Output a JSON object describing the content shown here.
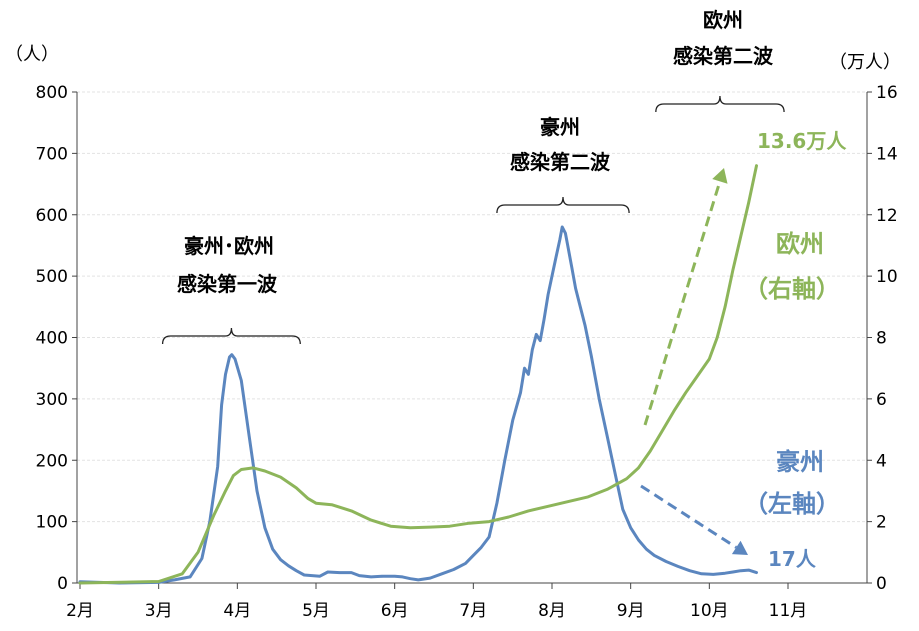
{
  "chart_data": {
    "type": "line",
    "y_left_unit": "（人）",
    "y_right_unit": "（万人）",
    "y_left_ticks": [
      "800",
      "700",
      "600",
      "500",
      "400",
      "300",
      "200",
      "100",
      "0"
    ],
    "y_right_ticks": [
      "16",
      "14",
      "12",
      "10",
      "8",
      "6",
      "4",
      "2",
      "0"
    ],
    "ylim_left": [
      0,
      800
    ],
    "ylim_right": [
      0,
      16
    ],
    "x_ticks": [
      "2月",
      "3月",
      "4月",
      "5月",
      "6月",
      "7月",
      "8月",
      "9月",
      "10月",
      "11月"
    ],
    "grid": true,
    "colors": {
      "australia": "#5b86bf",
      "europe": "#8db55a"
    },
    "series": [
      {
        "name": "豪州",
        "axis": "left",
        "label_line1": "豪州",
        "label_line2": "（左軸）",
        "end_label": "17人",
        "points": [
          [
            2.0,
            2
          ],
          [
            2.5,
            0
          ],
          [
            3.0,
            1
          ],
          [
            3.2,
            5
          ],
          [
            3.4,
            10
          ],
          [
            3.55,
            40
          ],
          [
            3.65,
            100
          ],
          [
            3.75,
            190
          ],
          [
            3.8,
            290
          ],
          [
            3.85,
            340
          ],
          [
            3.9,
            368
          ],
          [
            3.93,
            372
          ],
          [
            3.97,
            365
          ],
          [
            4.05,
            330
          ],
          [
            4.15,
            240
          ],
          [
            4.25,
            150
          ],
          [
            4.35,
            90
          ],
          [
            4.45,
            55
          ],
          [
            4.55,
            38
          ],
          [
            4.65,
            28
          ],
          [
            4.75,
            20
          ],
          [
            4.85,
            13
          ],
          [
            4.95,
            12
          ],
          [
            5.05,
            11
          ],
          [
            5.15,
            18
          ],
          [
            5.3,
            17
          ],
          [
            5.45,
            17
          ],
          [
            5.55,
            12
          ],
          [
            5.7,
            10
          ],
          [
            5.85,
            11
          ],
          [
            6.0,
            11
          ],
          [
            6.1,
            10
          ],
          [
            6.2,
            7
          ],
          [
            6.3,
            5
          ],
          [
            6.45,
            8
          ],
          [
            6.6,
            15
          ],
          [
            6.75,
            22
          ],
          [
            6.9,
            32
          ],
          [
            7.0,
            45
          ],
          [
            7.1,
            58
          ],
          [
            7.2,
            75
          ],
          [
            7.3,
            130
          ],
          [
            7.4,
            200
          ],
          [
            7.5,
            265
          ],
          [
            7.6,
            310
          ],
          [
            7.65,
            350
          ],
          [
            7.7,
            340
          ],
          [
            7.75,
            380
          ],
          [
            7.8,
            405
          ],
          [
            7.85,
            395
          ],
          [
            7.9,
            430
          ],
          [
            7.95,
            470
          ],
          [
            8.0,
            500
          ],
          [
            8.05,
            530
          ],
          [
            8.1,
            560
          ],
          [
            8.13,
            580
          ],
          [
            8.17,
            570
          ],
          [
            8.2,
            550
          ],
          [
            8.25,
            515
          ],
          [
            8.3,
            480
          ],
          [
            8.35,
            455
          ],
          [
            8.42,
            420
          ],
          [
            8.5,
            370
          ],
          [
            8.6,
            300
          ],
          [
            8.7,
            240
          ],
          [
            8.8,
            180
          ],
          [
            8.9,
            120
          ],
          [
            9.0,
            90
          ],
          [
            9.1,
            70
          ],
          [
            9.2,
            55
          ],
          [
            9.3,
            45
          ],
          [
            9.45,
            35
          ],
          [
            9.6,
            27
          ],
          [
            9.75,
            20
          ],
          [
            9.9,
            15
          ],
          [
            10.05,
            14
          ],
          [
            10.2,
            16
          ],
          [
            10.3,
            18
          ],
          [
            10.4,
            20
          ],
          [
            10.5,
            21
          ],
          [
            10.6,
            17
          ]
        ]
      },
      {
        "name": "欧州",
        "axis": "right",
        "label_line1": "欧州",
        "label_line2": "（右軸）",
        "end_label": "13.6万人",
        "points": [
          [
            2.0,
            0
          ],
          [
            3.0,
            0.05
          ],
          [
            3.3,
            0.3
          ],
          [
            3.5,
            1.0
          ],
          [
            3.7,
            2.2
          ],
          [
            3.85,
            3.0
          ],
          [
            3.95,
            3.5
          ],
          [
            4.05,
            3.7
          ],
          [
            4.2,
            3.75
          ],
          [
            4.35,
            3.65
          ],
          [
            4.55,
            3.45
          ],
          [
            4.75,
            3.1
          ],
          [
            4.9,
            2.75
          ],
          [
            5.0,
            2.6
          ],
          [
            5.2,
            2.55
          ],
          [
            5.45,
            2.35
          ],
          [
            5.7,
            2.05
          ],
          [
            5.95,
            1.85
          ],
          [
            6.2,
            1.8
          ],
          [
            6.45,
            1.82
          ],
          [
            6.7,
            1.85
          ],
          [
            6.95,
            1.95
          ],
          [
            7.2,
            2.0
          ],
          [
            7.45,
            2.15
          ],
          [
            7.7,
            2.35
          ],
          [
            7.95,
            2.5
          ],
          [
            8.2,
            2.65
          ],
          [
            8.45,
            2.8
          ],
          [
            8.7,
            3.05
          ],
          [
            8.95,
            3.4
          ],
          [
            9.1,
            3.75
          ],
          [
            9.25,
            4.3
          ],
          [
            9.4,
            4.95
          ],
          [
            9.55,
            5.6
          ],
          [
            9.7,
            6.2
          ],
          [
            9.85,
            6.75
          ],
          [
            10.0,
            7.3
          ],
          [
            10.1,
            8.0
          ],
          [
            10.2,
            9.0
          ],
          [
            10.3,
            10.2
          ],
          [
            10.4,
            11.3
          ],
          [
            10.5,
            12.4
          ],
          [
            10.6,
            13.6
          ]
        ]
      }
    ],
    "annotations": [
      {
        "id": "first_wave",
        "lines": [
          "豪州･欧州",
          "感染第一波"
        ],
        "range": [
          3.05,
          4.8
        ]
      },
      {
        "id": "au_second",
        "lines": [
          "豪州",
          "感染第二波"
        ],
        "range": [
          7.3,
          8.98
        ]
      },
      {
        "id": "eu_second",
        "lines": [
          "欧州",
          "感染第二波"
        ],
        "range": [
          9.32,
          10.95
        ]
      }
    ]
  }
}
